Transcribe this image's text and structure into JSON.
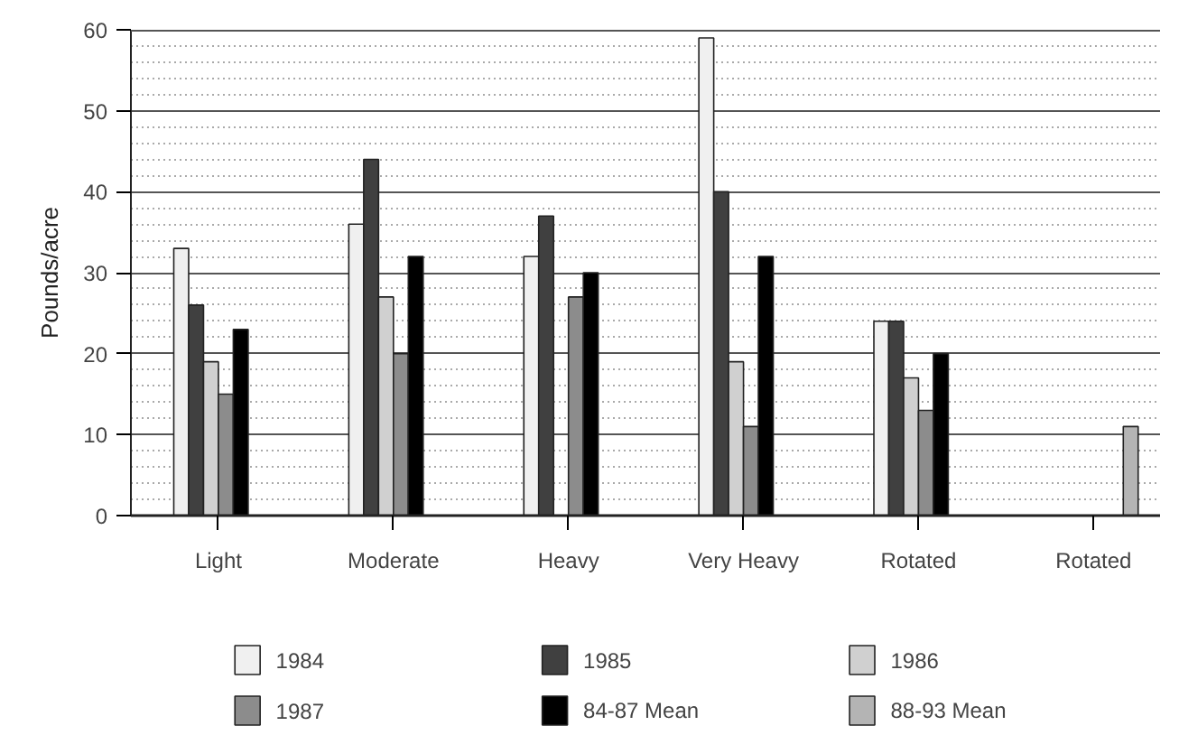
{
  "chart_data": {
    "type": "bar",
    "ylabel": "Pounds/acre",
    "categories": [
      "Light",
      "Moderate",
      "Heavy",
      "Very Heavy",
      "Rotated",
      "Rotated"
    ],
    "series": [
      {
        "name": "1984",
        "color": "#f0f0f0",
        "values": [
          33,
          36,
          32,
          59,
          24,
          null
        ]
      },
      {
        "name": "1985",
        "color": "#404040",
        "values": [
          26,
          44,
          37,
          40,
          24,
          null
        ]
      },
      {
        "name": "1986",
        "color": "#d0d0d0",
        "values": [
          19,
          27,
          null,
          19,
          17,
          null
        ]
      },
      {
        "name": "1987",
        "color": "#8c8c8c",
        "values": [
          15,
          20,
          27,
          11,
          13,
          null
        ]
      },
      {
        "name": "84-87 Mean",
        "color": "#000000",
        "values": [
          23,
          32,
          30,
          32,
          20,
          null
        ]
      },
      {
        "name": "88-93 Mean",
        "color": "#b4b4b4",
        "values": [
          null,
          null,
          null,
          null,
          null,
          11
        ]
      }
    ],
    "ylim": [
      0,
      60
    ],
    "yticks": [
      0,
      10,
      20,
      30,
      40,
      50,
      60
    ],
    "grid": "y",
    "legend": "bottom"
  }
}
